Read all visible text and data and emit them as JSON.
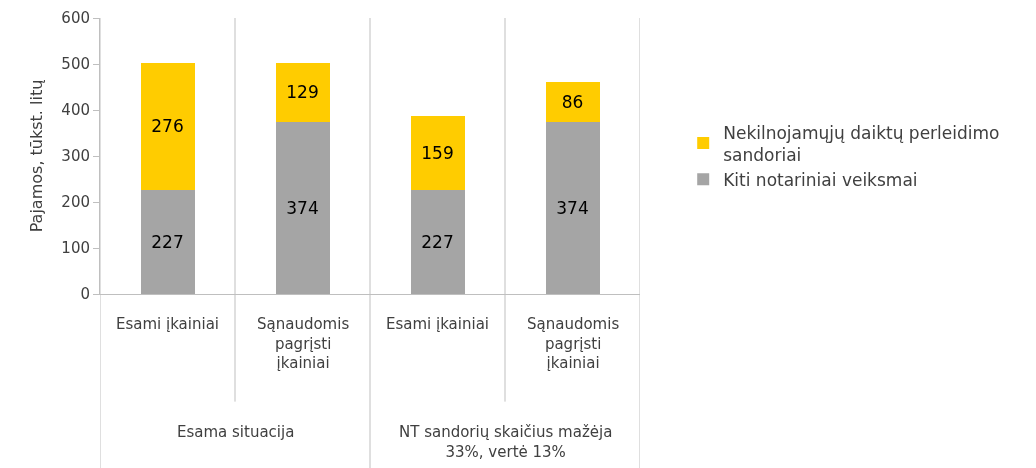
{
  "chart_data": {
    "type": "bar",
    "stacked": true,
    "ylabel": "Pajamos, tūkst. litų",
    "categories": [
      "Esami įkainiai",
      "Sąnaudomis pagrįsti įkainiai",
      "Esami įkainiai",
      "Sąnaudomis pagrįsti įkainiai"
    ],
    "series": [
      {
        "name": "Kiti notariniai veiksmai",
        "color": "#a5a5a5",
        "values": [
          227,
          374,
          227,
          374
        ]
      },
      {
        "name": "Nekilnojamųjų daiktų perleidimo sandoriai",
        "color": "#ffcc00",
        "values": [
          276,
          129,
          159,
          86
        ]
      }
    ],
    "annotations": [
      "Esama situacija",
      "NT sandorių skaičius mažėja 33%, vertė 13%"
    ],
    "ylim": [
      0,
      600
    ],
    "yticks": [
      0,
      100,
      200,
      300,
      400,
      500,
      600
    ],
    "grid": false,
    "legend": "right",
    "data_labels": true
  }
}
